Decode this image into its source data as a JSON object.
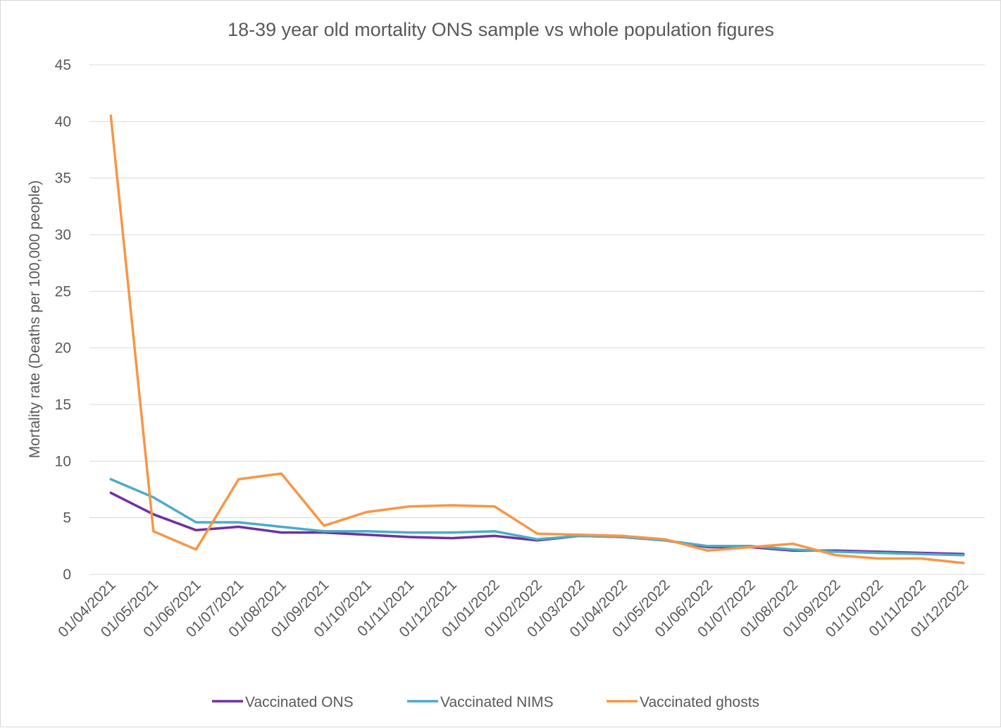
{
  "chart_data": {
    "type": "line",
    "title": "18-39 year old mortality ONS sample vs whole population figures",
    "xlabel": "",
    "ylabel": "Mortality rate (Deaths per 100,000 people)",
    "ylim": [
      0,
      45
    ],
    "yticks": [
      0,
      5,
      10,
      15,
      20,
      25,
      30,
      35,
      40,
      45
    ],
    "grid": "horizontal",
    "legend_position": "bottom",
    "categories": [
      "01/04/2021",
      "01/05/2021",
      "01/06/2021",
      "01/07/2021",
      "01/08/2021",
      "01/09/2021",
      "01/10/2021",
      "01/11/2021",
      "01/12/2021",
      "01/01/2022",
      "01/02/2022",
      "01/03/2022",
      "01/04/2022",
      "01/05/2022",
      "01/06/2022",
      "01/07/2022",
      "01/08/2022",
      "01/09/2022",
      "01/10/2022",
      "01/11/2022",
      "01/12/2022"
    ],
    "series": [
      {
        "name": "Vaccinated ONS",
        "color": "#7030a0",
        "values": [
          7.2,
          5.3,
          3.9,
          4.2,
          3.7,
          3.7,
          3.5,
          3.3,
          3.2,
          3.4,
          3.0,
          3.4,
          3.3,
          3.0,
          2.4,
          2.4,
          2.1,
          2.1,
          2.0,
          1.9,
          1.8
        ]
      },
      {
        "name": "Vaccinated NIMS",
        "color": "#4bacc6",
        "values": [
          8.4,
          6.8,
          4.6,
          4.6,
          4.2,
          3.8,
          3.8,
          3.7,
          3.7,
          3.8,
          3.1,
          3.4,
          3.3,
          3.0,
          2.5,
          2.5,
          2.2,
          2.0,
          1.9,
          1.8,
          1.7
        ]
      },
      {
        "name": "Vaccinated ghosts",
        "color": "#f79646",
        "values": [
          40.5,
          3.8,
          2.2,
          8.4,
          8.9,
          4.3,
          5.5,
          6.0,
          6.1,
          6.0,
          3.6,
          3.5,
          3.4,
          3.1,
          2.1,
          2.4,
          2.7,
          1.7,
          1.4,
          1.4,
          1.0
        ]
      }
    ]
  }
}
